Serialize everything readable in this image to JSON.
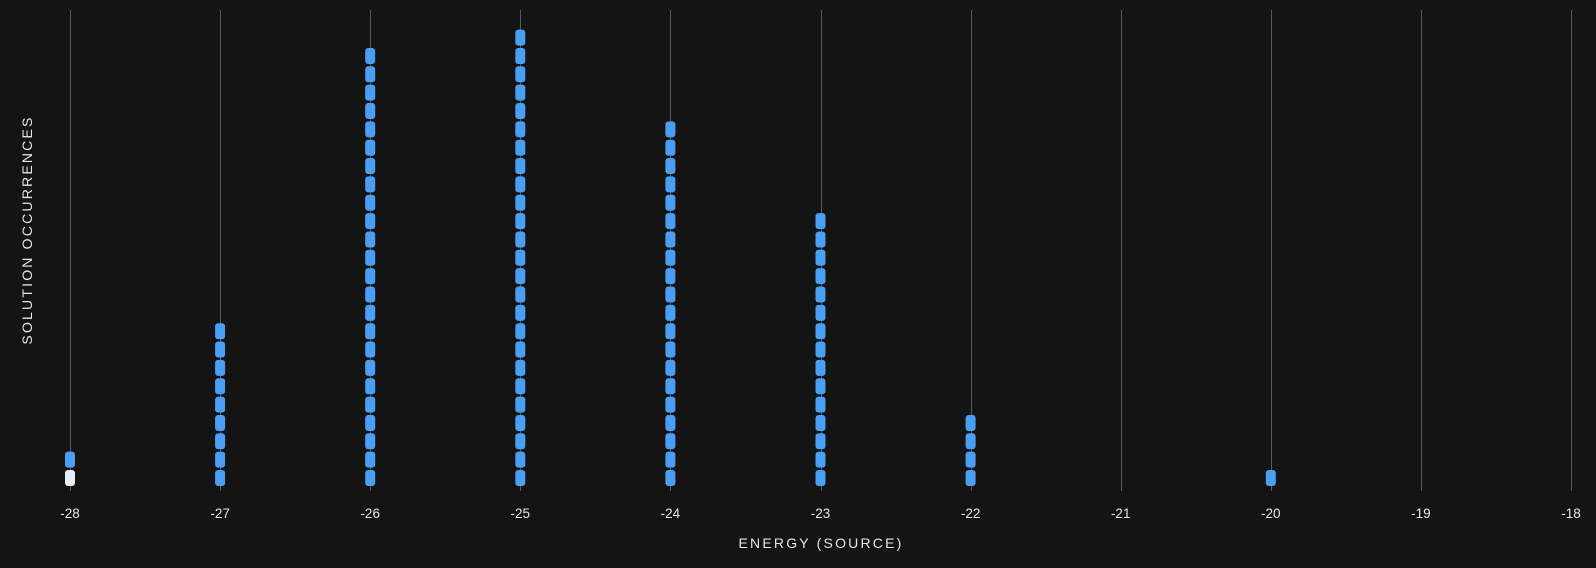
{
  "chart_data": {
    "type": "dot histogram",
    "xlabel": "ENERGY (SOURCE)",
    "ylabel": "SOLUTION OCCURRENCES",
    "x_ticks": [
      -28,
      -27,
      -26,
      -25,
      -24,
      -23,
      -22,
      -21,
      -20,
      -19,
      -18
    ],
    "xlim": [
      -28,
      -18
    ],
    "grid": "vertical",
    "dot_color": "#4a9ff5",
    "highlight_color": "#e8eef6",
    "x": [
      -28,
      -27,
      -26,
      -25,
      -24,
      -23,
      -22,
      -21,
      -20,
      -19,
      -18
    ],
    "counts": [
      2,
      9,
      24,
      25,
      20,
      15,
      4,
      0,
      1,
      0,
      0
    ],
    "highlighted": [
      {
        "x": -28,
        "index": 0
      }
    ]
  }
}
